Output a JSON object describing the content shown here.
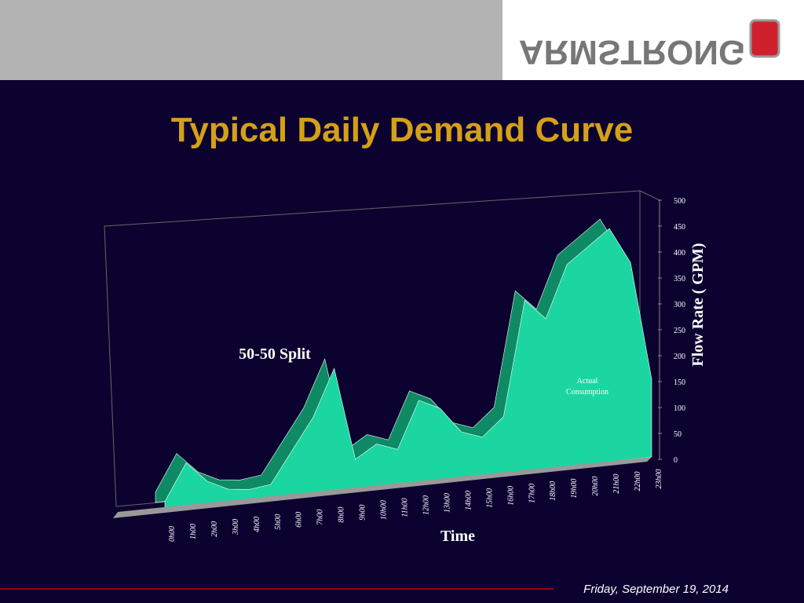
{
  "slide": {
    "logo": "ARMSTRONG",
    "date": "Friday, September 19, 2014"
  },
  "chart_data": {
    "type": "area",
    "title": "Typical Daily Demand Curve",
    "annotation": "50-50 Split",
    "x_label": "Time",
    "y_label": "Flow Rate ( GPM)",
    "categories": [
      "0h00",
      "1h00",
      "2h00",
      "3h00",
      "4h00",
      "5h00",
      "6h00",
      "7h00",
      "8h00",
      "9h00",
      "10h00",
      "11h00",
      "12h00",
      "13h00",
      "14h00",
      "15h00",
      "16h00",
      "17h00",
      "18h00",
      "19h00",
      "20h00",
      "21h00",
      "22h00",
      "23h00"
    ],
    "series": [
      {
        "name": "Actual Consumption",
        "color": "#1bd6a0",
        "values": [
          20,
          90,
          50,
          30,
          25,
          30,
          90,
          150,
          240,
          60,
          85,
          70,
          160,
          140,
          90,
          75,
          110,
          330,
          290,
          390,
          420,
          450,
          380,
          150
        ]
      }
    ],
    "ylim": [
      0,
      500
    ],
    "yticks": [
      0,
      50,
      100,
      150,
      200,
      250,
      300,
      350,
      400,
      450,
      500
    ]
  }
}
